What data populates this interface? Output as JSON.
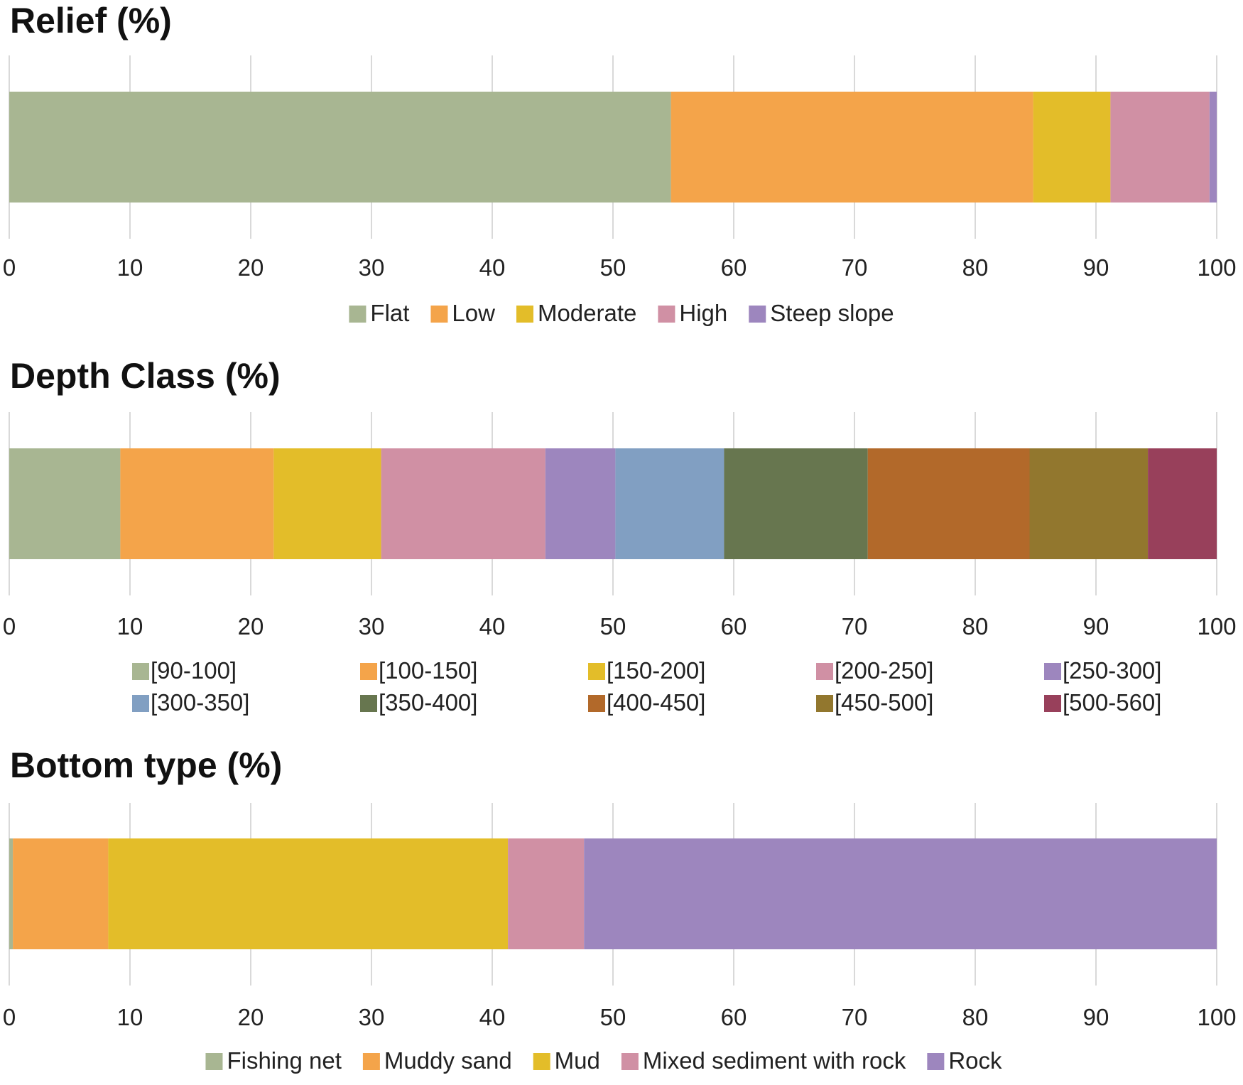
{
  "chart_data": [
    {
      "type": "bar",
      "orientation": "horizontal-stacked",
      "title": "Relief (%)",
      "xlim": [
        0,
        100
      ],
      "ticks": [
        "0",
        "10",
        "20",
        "30",
        "40",
        "50",
        "60",
        "70",
        "80",
        "90",
        "100"
      ],
      "grid": true,
      "legend_position": "bottom",
      "series": [
        {
          "name": "Flat",
          "value": 54.8,
          "color": "#a8b692"
        },
        {
          "name": "Low",
          "value": 30.0,
          "color": "#f4a44a"
        },
        {
          "name": "Moderate",
          "value": 6.4,
          "color": "#e3bd29"
        },
        {
          "name": "High",
          "value": 8.2,
          "color": "#d090a4"
        },
        {
          "name": "Steep slope",
          "value": 0.6,
          "color": "#9d86be"
        }
      ]
    },
    {
      "type": "bar",
      "orientation": "horizontal-stacked",
      "title": "Depth Class (%)",
      "xlim": [
        0,
        100
      ],
      "ticks": [
        "0",
        "10",
        "20",
        "30",
        "40",
        "50",
        "60",
        "70",
        "80",
        "90",
        "100"
      ],
      "grid": true,
      "legend_position": "bottom",
      "series": [
        {
          "name": "[90-100]",
          "value": 9.2,
          "color": "#a8b692"
        },
        {
          "name": "[100-150]",
          "value": 12.7,
          "color": "#f4a44a"
        },
        {
          "name": "[150-200]",
          "value": 8.9,
          "color": "#e3bd29"
        },
        {
          "name": "[200-250]",
          "value": 13.6,
          "color": "#d090a4"
        },
        {
          "name": "[250-300]",
          "value": 5.8,
          "color": "#9d86be"
        },
        {
          "name": "[300-350]",
          "value": 9.0,
          "color": "#819fc2"
        },
        {
          "name": "[350-400]",
          "value": 11.9,
          "color": "#67764f"
        },
        {
          "name": "[400-450]",
          "value": 13.4,
          "color": "#b2692a"
        },
        {
          "name": "[450-500]",
          "value": 9.8,
          "color": "#92772e"
        },
        {
          "name": "[500-560]",
          "value": 5.7,
          "color": "#98405b"
        }
      ]
    },
    {
      "type": "bar",
      "orientation": "horizontal-stacked",
      "title": "Bottom type (%)",
      "xlim": [
        0,
        100
      ],
      "ticks": [
        "0",
        "10",
        "20",
        "30",
        "40",
        "50",
        "60",
        "70",
        "80",
        "90",
        "100"
      ],
      "grid": true,
      "legend_position": "bottom",
      "series": [
        {
          "name": "Fishing net",
          "value": 0.3,
          "color": "#a8b692"
        },
        {
          "name": "Muddy sand",
          "value": 7.9,
          "color": "#f4a44a"
        },
        {
          "name": "Mud",
          "value": 33.1,
          "color": "#e3bd29"
        },
        {
          "name": "Mixed sediment with rock",
          "value": 6.3,
          "color": "#d090a4"
        },
        {
          "name": "Rock",
          "value": 52.4,
          "color": "#9d86be"
        }
      ]
    }
  ]
}
